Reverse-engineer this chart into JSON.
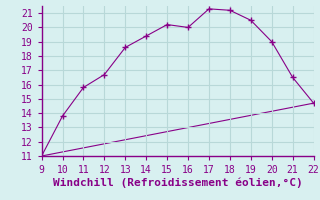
{
  "line1_x": [
    9,
    10,
    11,
    12,
    13,
    14,
    15,
    16,
    17,
    18,
    19,
    20,
    21,
    22
  ],
  "line1_y": [
    11.0,
    13.8,
    15.8,
    16.7,
    18.6,
    19.4,
    20.2,
    20.0,
    21.3,
    21.2,
    20.5,
    19.0,
    16.5,
    14.7
  ],
  "line2_x": [
    9,
    22
  ],
  "line2_y": [
    11.0,
    14.7
  ],
  "line_color": "#880088",
  "marker": "+",
  "bg_color": "#d8f0f0",
  "grid_color": "#b8d8d8",
  "xlabel": "Windchill (Refroidissement éolien,°C)",
  "xlabel_color": "#880088",
  "xlim": [
    9,
    22
  ],
  "ylim": [
    11,
    21.5
  ],
  "xticks": [
    9,
    10,
    11,
    12,
    13,
    14,
    15,
    16,
    17,
    18,
    19,
    20,
    21,
    22
  ],
  "yticks": [
    11,
    12,
    13,
    14,
    15,
    16,
    17,
    18,
    19,
    20,
    21
  ],
  "tick_color": "#880088",
  "tick_labelsize": 7,
  "xlabel_fontsize": 8,
  "spine_color": "#880088"
}
